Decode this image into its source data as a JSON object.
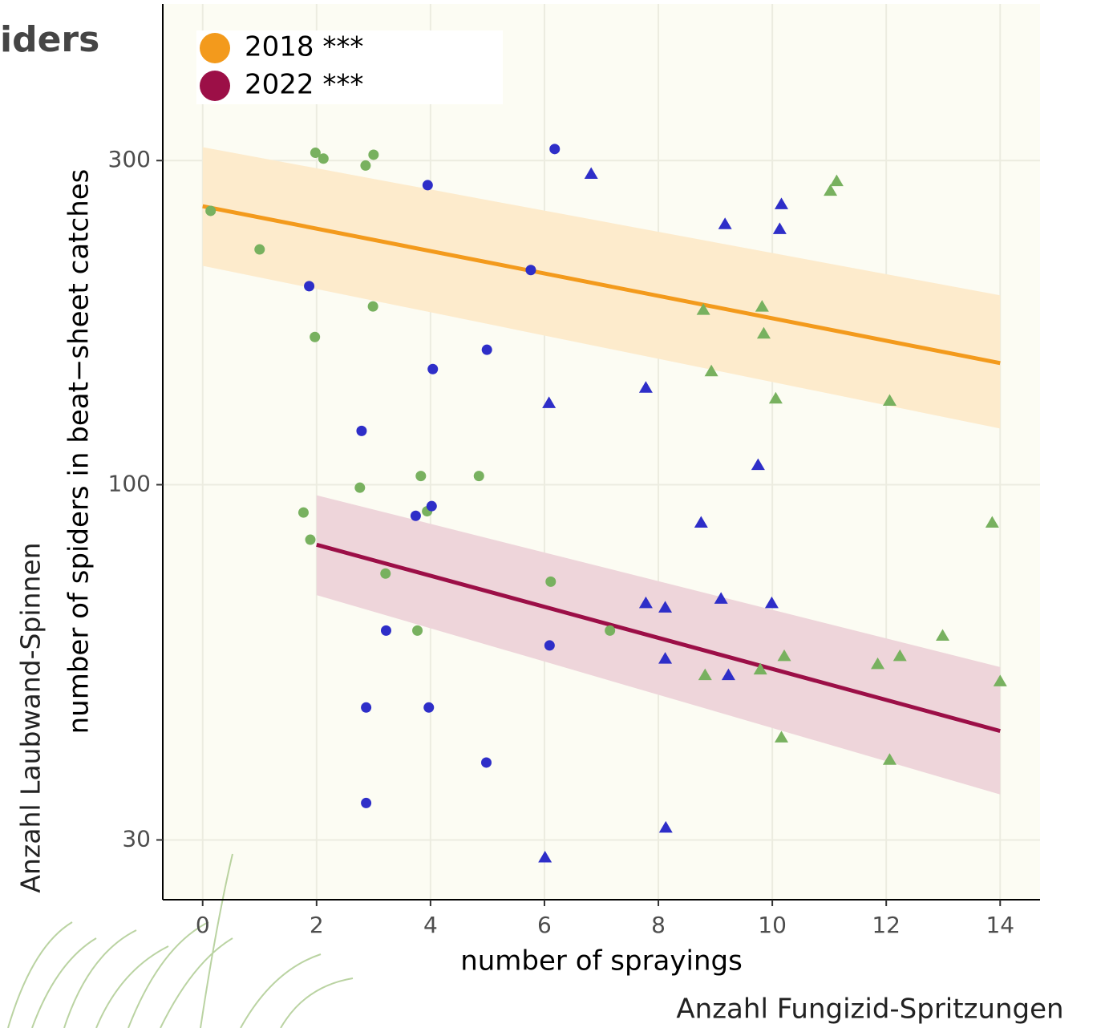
{
  "chart_data": {
    "type": "scatter",
    "title": "iders",
    "y_label": "number of spiders in beat−sheet catches",
    "x_label": "number of sprayings",
    "y_annotation": "Anzahl Laubwand-Spinnen",
    "x_annotation": "Anzahl Fungizid-Spritzungen",
    "xlim": [
      -0.7,
      14.7
    ],
    "ylim": [
      24.5,
      510
    ],
    "y_log_scale": true,
    "xticks": [
      0,
      2,
      4,
      6,
      8,
      10,
      12,
      14
    ],
    "yticks": [
      30,
      100,
      300
    ],
    "grid": true,
    "legend_position": "top-left",
    "series": [
      {
        "name": "2018 ***",
        "color": "#f39a1c",
        "band_color": "#fdebcc",
        "x": [
          0,
          14
        ],
        "values": [
          257,
          151
        ],
        "lower": [
          210,
          121
        ],
        "upper": [
          314,
          190
        ]
      },
      {
        "name": "2022 ***",
        "color": "#9c0f47",
        "band_color": "#eed5da",
        "x": [
          2,
          14
        ],
        "values": [
          81.6,
          43.4
        ],
        "lower": [
          68.8,
          35
        ],
        "upper": [
          96.5,
          53.9
        ]
      }
    ],
    "points": [
      {
        "color": "#78b15f",
        "shape": "circle",
        "x": [
          0.14,
          1.0,
          1.98,
          2.12,
          2.86,
          3.0,
          2.99,
          1.97,
          2.76,
          1.77,
          1.89,
          3.83,
          3.94,
          4.85,
          3.21,
          3.77,
          6.11,
          7.15
        ],
        "values": [
          253,
          222,
          308,
          302,
          295,
          306,
          183,
          165,
          99,
          91,
          83,
          103,
          91.4,
          103,
          74,
          61,
          72,
          61
        ]
      },
      {
        "color": "#2e2ec8",
        "shape": "circle",
        "x": [
          6.18,
          3.95,
          1.87,
          5.76,
          4.99,
          4.04,
          2.79,
          3.74,
          4.02,
          3.22,
          6.09,
          2.87,
          3.97,
          4.98,
          2.87
        ],
        "values": [
          312,
          276,
          196,
          207,
          158,
          148,
          120,
          90,
          93,
          61,
          58,
          47,
          47,
          39,
          34
        ]
      },
      {
        "color": "#2e2ec8",
        "shape": "triangle",
        "x": [
          6.82,
          10.16,
          9.17,
          10.13,
          7.78,
          6.08,
          9.75,
          8.75,
          9.1,
          7.78,
          8.12,
          9.99,
          8.12,
          9.23,
          8.13,
          6.01
        ],
        "values": [
          287,
          259,
          242,
          238,
          139,
          132,
          107,
          88,
          68,
          67,
          66,
          67,
          55.5,
          52.5,
          31.3,
          28.3
        ]
      },
      {
        "color": "#78b15f",
        "shape": "triangle",
        "x": [
          11.13,
          11.02,
          8.79,
          9.82,
          9.85,
          8.93,
          10.06,
          12.06,
          13.86,
          12.99,
          10.21,
          12.24,
          11.85,
          9.79,
          8.82,
          14.0,
          10.16,
          12.06
        ],
        "values": [
          280,
          271,
          181,
          183,
          167,
          147,
          134,
          133,
          88,
          60,
          56,
          56,
          54.5,
          53.5,
          52.5,
          51.4,
          42.5,
          39.4
        ]
      }
    ]
  }
}
